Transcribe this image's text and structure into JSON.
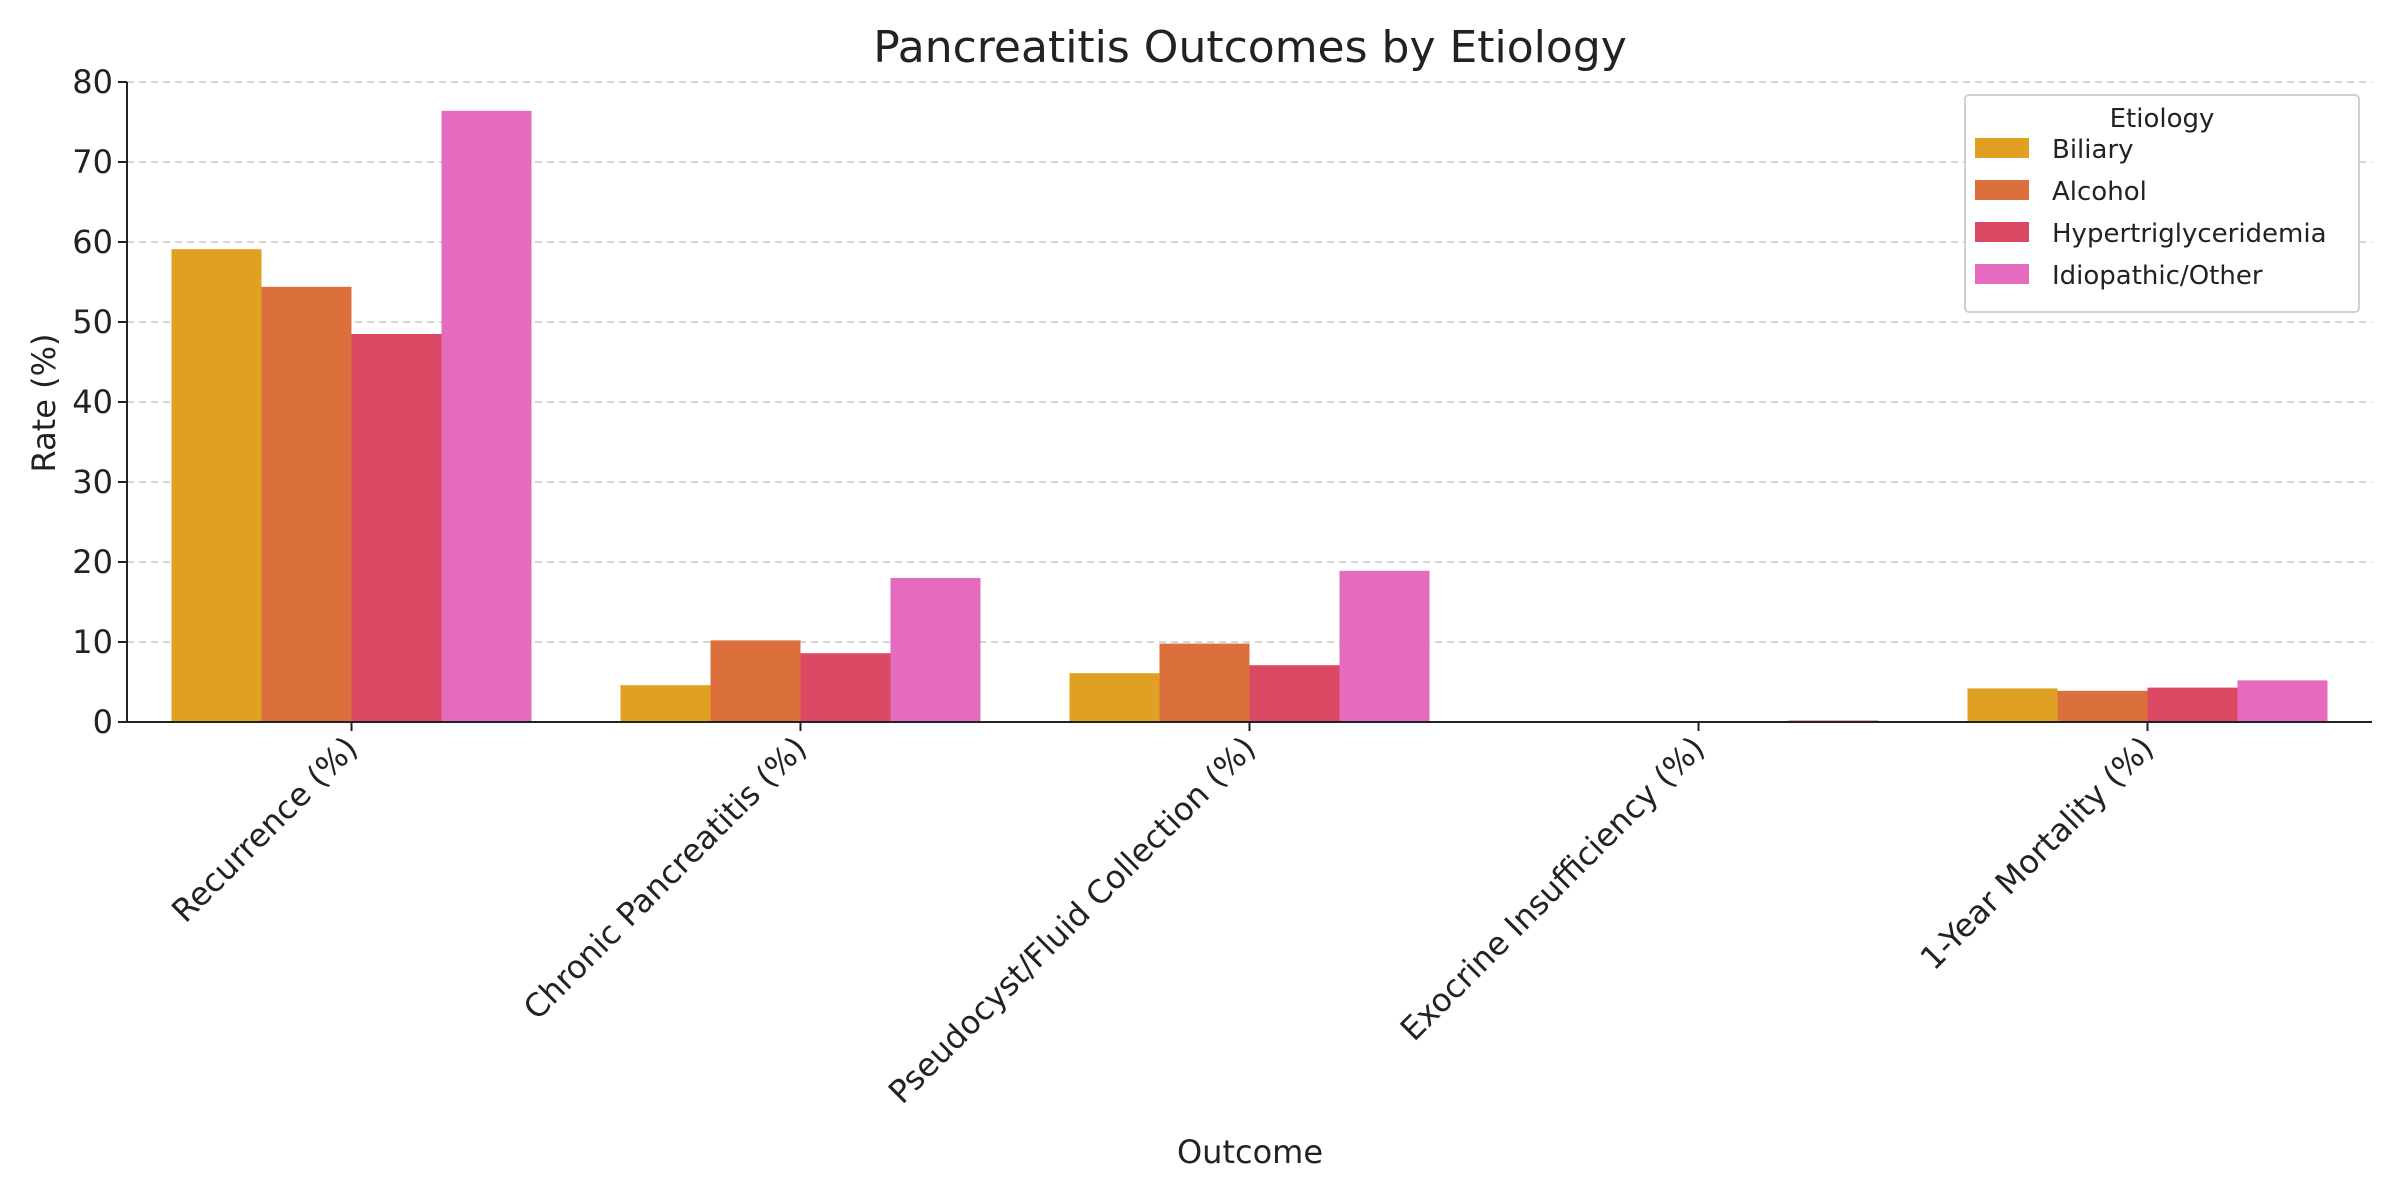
{
  "chart_data": {
    "type": "bar",
    "title": "Pancreatitis Outcomes by Etiology",
    "xlabel": "Outcome",
    "ylabel": "Rate (%)",
    "ylim": [
      0,
      80
    ],
    "yticks": [
      0,
      10,
      20,
      30,
      40,
      50,
      60,
      70,
      80
    ],
    "grid": "y, dashed",
    "legend": {
      "title": "Etiology",
      "placement": "top-right"
    },
    "categories": [
      "Recurrence (%)",
      "Chronic Pancreatitis (%)",
      "Pseudocyst/Fluid Collection (%)",
      "Exocrine Insufficiency (%)",
      "1-Year Mortality (%)"
    ],
    "series": [
      {
        "name": "Biliary",
        "color": "#E0A122",
        "values": [
          59.1,
          4.6,
          6.1,
          0,
          4.2
        ]
      },
      {
        "name": "Alcohol",
        "color": "#DB703C",
        "values": [
          54.4,
          10.2,
          9.8,
          0,
          3.9
        ]
      },
      {
        "name": "Hypertriglyceridemia",
        "color": "#DB4965",
        "values": [
          48.5,
          8.6,
          7.1,
          0.1,
          4.3
        ]
      },
      {
        "name": "Idiopathic/Other",
        "color": "#E46BBE",
        "values": [
          76.4,
          18.0,
          18.9,
          0.2,
          5.2
        ]
      }
    ]
  }
}
